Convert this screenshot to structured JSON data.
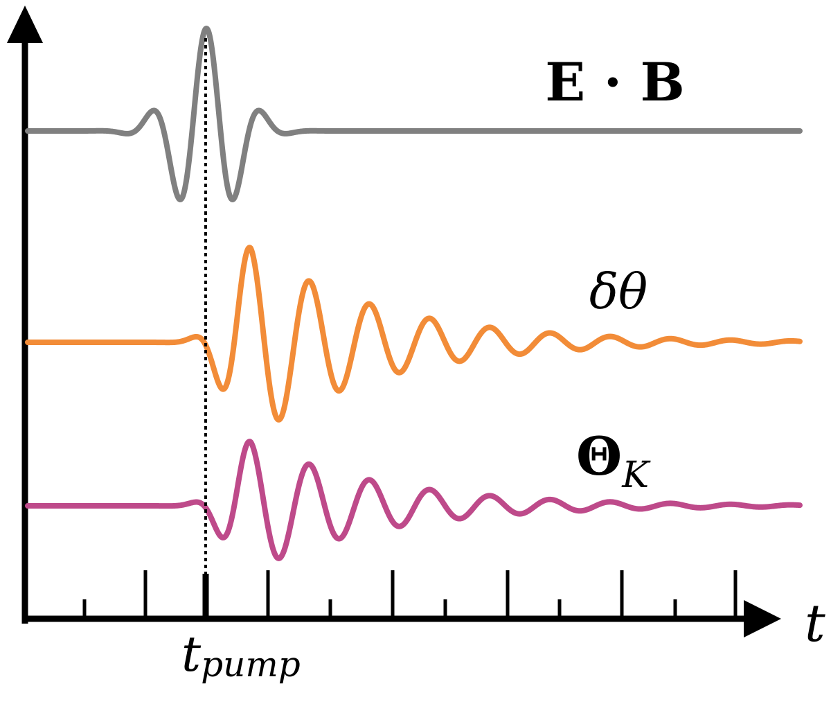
{
  "signals": [
    {
      "key": "eb",
      "label_main": "E · B",
      "label_sub": "",
      "color": "#808080",
      "bold": true,
      "italic": false
    },
    {
      "key": "dtheta",
      "label_main": "δθ",
      "label_sub": "",
      "color": "#F28C38",
      "bold": false,
      "italic": true
    },
    {
      "key": "thetaK",
      "label_main": "Θ",
      "label_sub": "K",
      "color": "#BE4A8A",
      "bold": true,
      "italic": false
    }
  ],
  "axis": {
    "x_label": "t",
    "marker_label_main": "t",
    "marker_label_sub": "pump"
  },
  "colors": {
    "axis": "#000000",
    "marker": "#000000"
  }
}
